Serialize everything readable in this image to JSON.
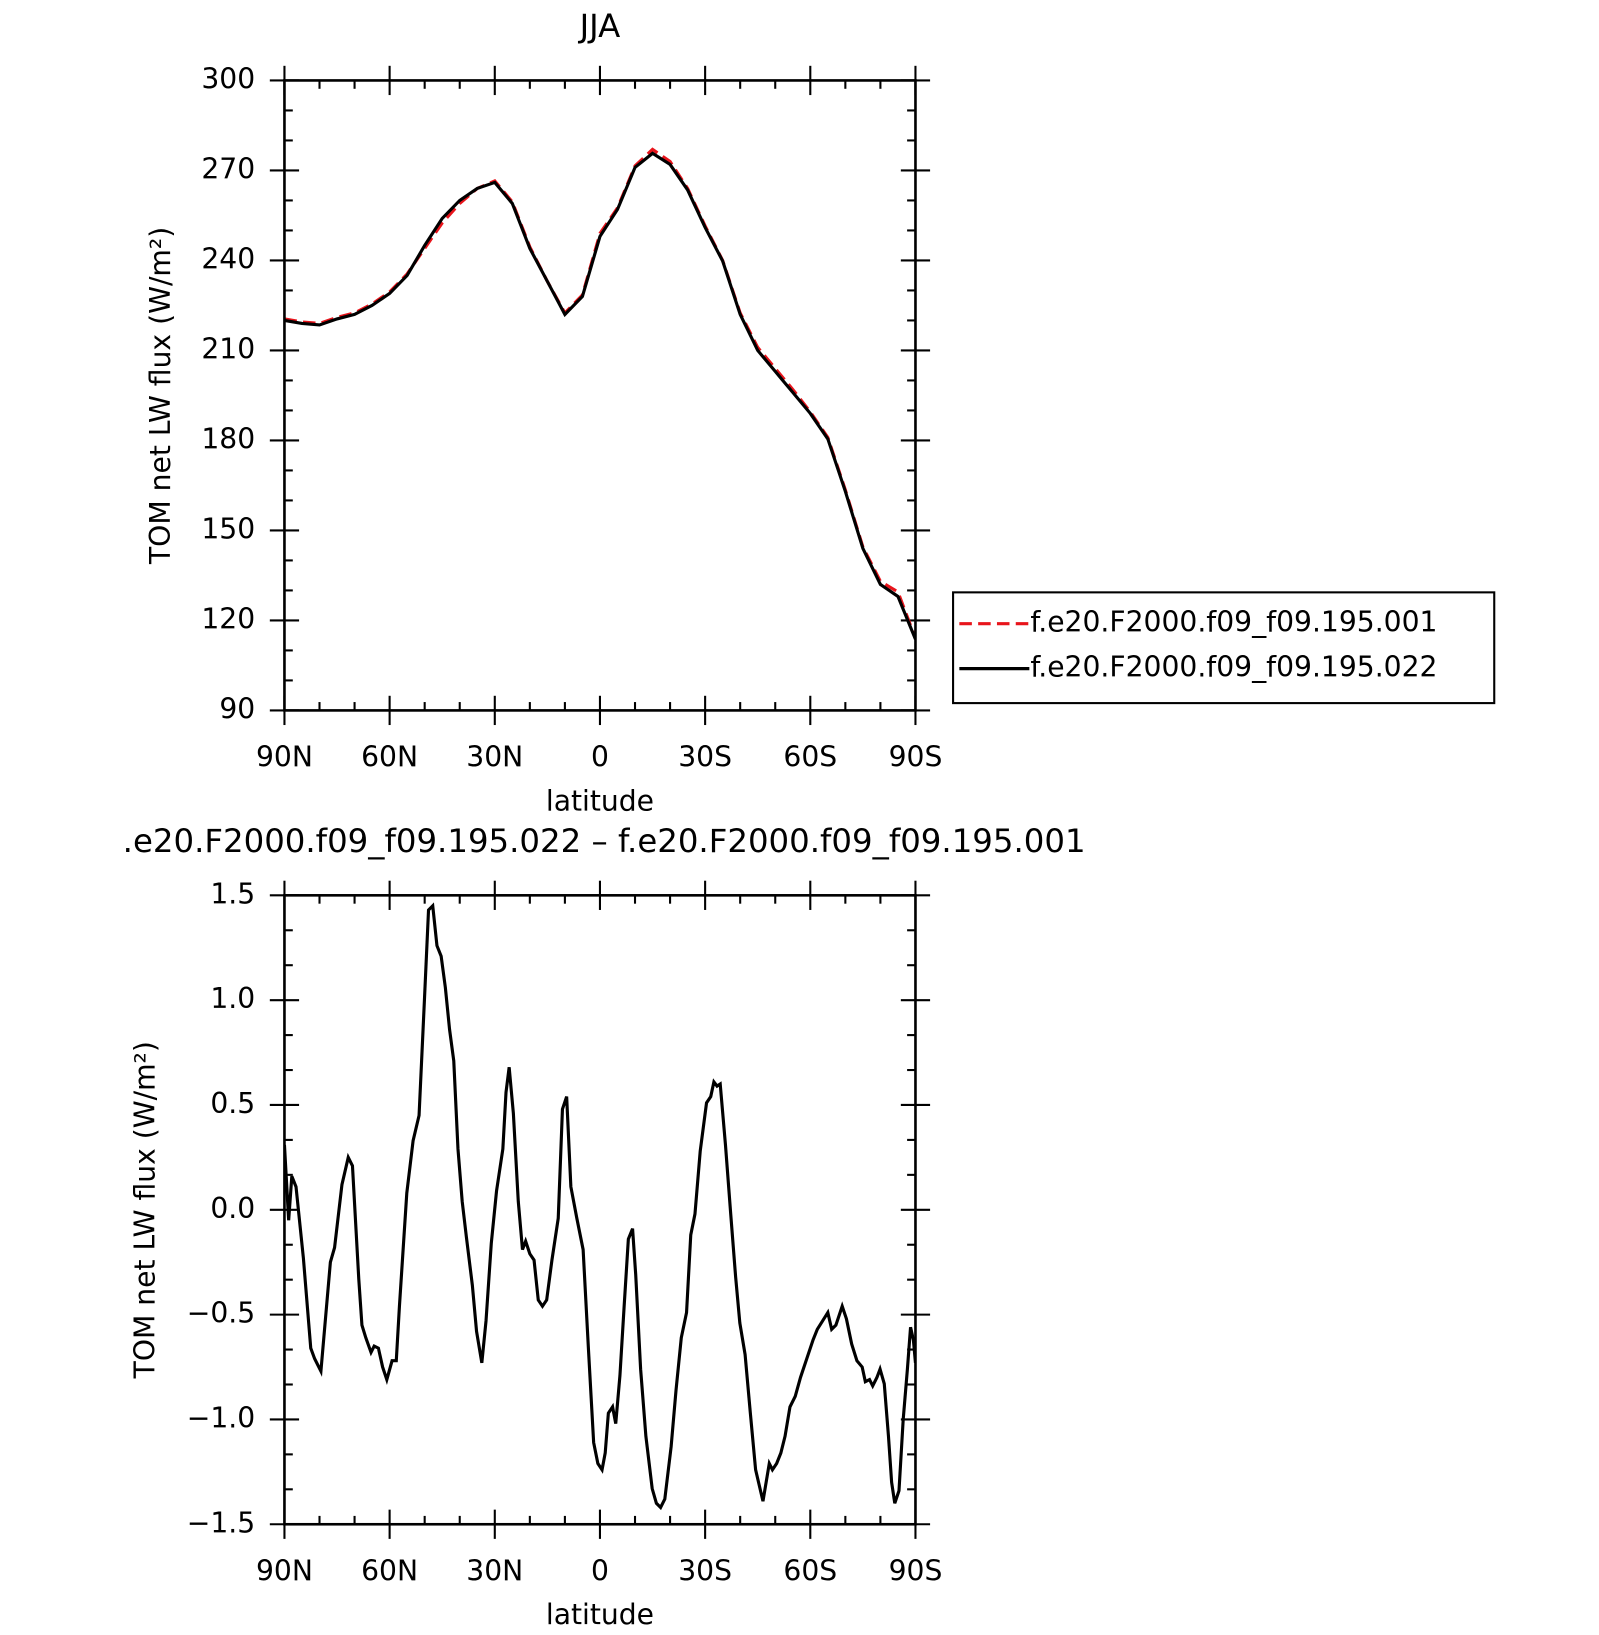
{
  "chart_data": [
    {
      "type": "line",
      "title": "JJA",
      "xlabel": "latitude",
      "ylabel": "TOM net LW flux (W/m²)",
      "x": [
        90,
        85,
        80,
        75,
        70,
        65,
        60,
        55,
        50,
        45,
        40,
        35,
        30,
        25,
        20,
        15,
        10,
        5,
        0,
        -5,
        -10,
        -15,
        -20,
        -25,
        -30,
        -35,
        -40,
        -45,
        -50,
        -55,
        -60,
        -65,
        -70,
        -75,
        -80,
        -85,
        -90
      ],
      "series": [
        {
          "name": "f.e20.F2000.f09_f09.195.001",
          "color": "#e8141b",
          "linestyle": "dashed",
          "values": [
            220.5,
            219.5,
            219,
            221,
            222.5,
            225.5,
            229.5,
            235.5,
            244,
            252.5,
            259,
            264,
            266.5,
            259.5,
            244.5,
            233,
            222.5,
            228.5,
            249,
            257.5,
            271.5,
            277,
            273,
            264,
            251.5,
            240,
            222.5,
            211,
            204,
            197,
            189.5,
            181,
            163.5,
            144.5,
            133,
            129.5,
            114
          ]
        },
        {
          "name": "f.e20.F2000.f09_f09.195.022",
          "color": "#000000",
          "linestyle": "solid",
          "values": [
            220,
            219,
            218.5,
            220.5,
            222,
            225,
            229,
            235,
            245,
            254,
            260,
            264,
            266,
            259,
            244,
            233,
            222,
            228,
            248,
            257,
            271,
            275.7,
            272,
            263.5,
            251,
            239.8,
            222,
            210,
            203,
            196,
            189,
            180.5,
            163,
            144,
            132,
            128,
            113.7
          ]
        }
      ],
      "xlim": [
        90,
        -90
      ],
      "xticks": [
        {
          "value": 90,
          "label": "90N"
        },
        {
          "value": 60,
          "label": "60N"
        },
        {
          "value": 30,
          "label": "30N"
        },
        0,
        {
          "value": -30,
          "label": "30S"
        },
        {
          "value": -60,
          "label": "60S"
        },
        {
          "value": -90,
          "label": "90S"
        }
      ],
      "ylim": [
        90,
        300
      ],
      "yticks": [
        90,
        120,
        150,
        180,
        210,
        240,
        270,
        300
      ],
      "legend": "right"
    },
    {
      "type": "line",
      "title": ".e20.F2000.f09_f09.195.022 – f.e20.F2000.f09_f09.195.001",
      "xlabel": "latitude",
      "ylabel": "TOM net LW flux (W/m²)",
      "x": [
        90,
        88.8,
        87.9,
        86.7,
        84.6,
        82.5,
        81.4,
        79.6,
        76.9,
        75.7,
        73.6,
        71.8,
        70.6,
        68.8,
        67.9,
        66.8,
        65.3,
        64.4,
        63.2,
        62,
        60.8,
        59.3,
        58.1,
        57.2,
        55.1,
        53.3,
        51.6,
        50.1,
        48.9,
        47.7,
        46.5,
        45.3,
        44.1,
        42.9,
        41.7,
        40.5,
        39.3,
        38.1,
        36.4,
        35.2,
        33.7,
        32.5,
        31,
        29.5,
        27.7,
        26.8,
        25.9,
        24.7,
        23.3,
        22.1,
        21.2,
        20,
        18.8,
        17.6,
        16.4,
        15.2,
        13.7,
        11.9,
        10.7,
        9.5,
        8.3,
        6.6,
        4.8,
        3.3,
        1.8,
        0.6,
        -0.6,
        -1.5,
        -2.4,
        -3.6,
        -4.5,
        -5.7,
        -6.9,
        -8.1,
        -9.3,
        -10.2,
        -11.6,
        -13.1,
        -14.9,
        -16.1,
        -17.3,
        -18.5,
        -20.3,
        -21.7,
        -23.2,
        -24.7,
        -25.9,
        -27.1,
        -28.6,
        -30.4,
        -31.6,
        -32.5,
        -33.4,
        -34.3,
        -35.8,
        -37.3,
        -38.7,
        -39.9,
        -41.4,
        -42.9,
        -44.4,
        -46.5,
        -48.3,
        -49.2,
        -50.4,
        -51.6,
        -52.8,
        -54.2,
        -55.7,
        -57.2,
        -59,
        -60.8,
        -62,
        -63.5,
        -65,
        -66.1,
        -67.3,
        -69.1,
        -70.3,
        -71.8,
        -73.3,
        -74.8,
        -75.7,
        -76.9,
        -77.8,
        -79,
        -79.9,
        -81.1,
        -82.3,
        -83.2,
        -84.1,
        -85.3,
        -86.5,
        -87.7,
        -88.6,
        -89.4,
        -90
      ],
      "values": [
        0.31,
        -0.05,
        0.16,
        0.11,
        -0.23,
        -0.66,
        -0.71,
        -0.77,
        -0.25,
        -0.18,
        0.12,
        0.25,
        0.21,
        -0.33,
        -0.55,
        -0.61,
        -0.68,
        -0.65,
        -0.66,
        -0.75,
        -0.81,
        -0.72,
        -0.72,
        -0.46,
        0.08,
        0.33,
        0.45,
        0.99,
        1.43,
        1.45,
        1.26,
        1.21,
        1.06,
        0.86,
        0.71,
        0.29,
        0.04,
        -0.13,
        -0.36,
        -0.58,
        -0.73,
        -0.53,
        -0.16,
        0.09,
        0.29,
        0.56,
        0.68,
        0.46,
        0.04,
        -0.19,
        -0.15,
        -0.21,
        -0.24,
        -0.43,
        -0.46,
        -0.43,
        -0.24,
        -0.04,
        0.48,
        0.54,
        0.11,
        -0.04,
        -0.19,
        -0.66,
        -1.11,
        -1.21,
        -1.24,
        -1.16,
        -0.97,
        -0.94,
        -1.02,
        -0.79,
        -0.46,
        -0.14,
        -0.09,
        -0.31,
        -0.76,
        -1.08,
        -1.33,
        -1.4,
        -1.42,
        -1.38,
        -1.13,
        -0.86,
        -0.61,
        -0.49,
        -0.12,
        -0.02,
        0.28,
        0.51,
        0.54,
        0.61,
        0.59,
        0.6,
        0.31,
        -0.02,
        -0.32,
        -0.54,
        -0.69,
        -0.97,
        -1.24,
        -1.39,
        -1.21,
        -1.24,
        -1.21,
        -1.16,
        -1.08,
        -0.94,
        -0.89,
        -0.8,
        -0.71,
        -0.62,
        -0.57,
        -0.53,
        -0.49,
        -0.57,
        -0.55,
        -0.46,
        -0.52,
        -0.64,
        -0.72,
        -0.75,
        -0.82,
        -0.81,
        -0.84,
        -0.8,
        -0.76,
        -0.83,
        -1.08,
        -1.3,
        -1.4,
        -1.34,
        -1.0,
        -0.76,
        -0.56,
        -0.62,
        -0.73
      ],
      "color": "#000000",
      "xlim": [
        90,
        -90
      ],
      "xticks": [
        {
          "value": 90,
          "label": "90N"
        },
        {
          "value": 60,
          "label": "60N"
        },
        {
          "value": 30,
          "label": "30N"
        },
        0,
        {
          "value": -30,
          "label": "30S"
        },
        {
          "value": -60,
          "label": "60S"
        },
        {
          "value": -90,
          "label": "90S"
        }
      ],
      "ylim": [
        -1.5,
        1.5
      ],
      "yticks": [
        {
          "value": -1.5,
          "label": "−1.5"
        },
        {
          "value": -1,
          "label": "−1.0"
        },
        {
          "value": -0.5,
          "label": "−0.5"
        },
        {
          "value": 0,
          "label": "0.0"
        },
        0.5,
        {
          "value": 1,
          "label": "1.0"
        },
        1.5
      ]
    }
  ]
}
